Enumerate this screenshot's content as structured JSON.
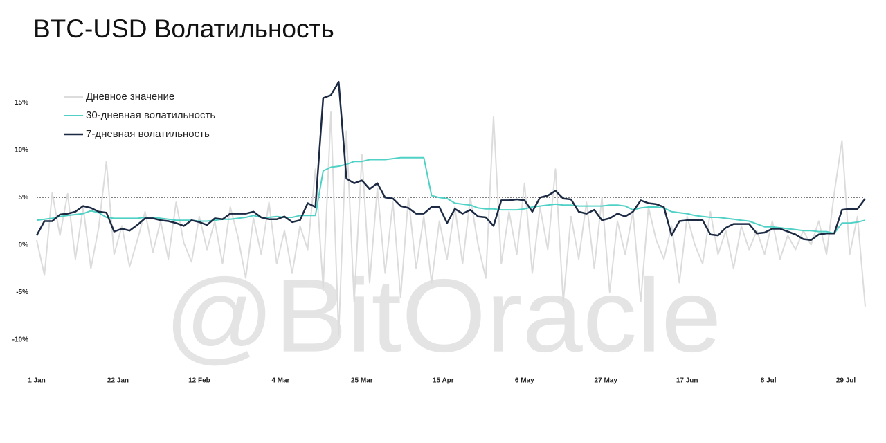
{
  "chart_data": {
    "type": "line",
    "title": "BTC-USD Волатильность",
    "watermark": "@BitOracle",
    "x": [
      0,
      2,
      4,
      6,
      8,
      10,
      12,
      14,
      16,
      18,
      20,
      22,
      24,
      26,
      28,
      30,
      32,
      34,
      36,
      38,
      40,
      42,
      44,
      46,
      48,
      50,
      52,
      54,
      56,
      58,
      60,
      62,
      64,
      66,
      68,
      70,
      72,
      74,
      76,
      78,
      80,
      82,
      84,
      86,
      88,
      90,
      92,
      94,
      96,
      98,
      100,
      102,
      104,
      106,
      108,
      110,
      112,
      114,
      116,
      118,
      120,
      122,
      124,
      126,
      128,
      130,
      132,
      134,
      136,
      138,
      140,
      142,
      144,
      146,
      148,
      150,
      152,
      154,
      156,
      158,
      160,
      162,
      164,
      166,
      168,
      170,
      172,
      174,
      176,
      178,
      180,
      182,
      184,
      186,
      188,
      190,
      192,
      194,
      196,
      198,
      200,
      202,
      204,
      206,
      208,
      210,
      212,
      214
    ],
    "xlim": [
      0,
      214
    ],
    "xticks": [
      {
        "value": 0,
        "label": "1 Jan"
      },
      {
        "value": 21,
        "label": "22 Jan"
      },
      {
        "value": 42,
        "label": "12 Feb"
      },
      {
        "value": 63,
        "label": "4 Mar"
      },
      {
        "value": 84,
        "label": "25 Mar"
      },
      {
        "value": 105,
        "label": "15 Apr"
      },
      {
        "value": 126,
        "label": "6 May"
      },
      {
        "value": 147,
        "label": "27 May"
      },
      {
        "value": 168,
        "label": "17 Jun"
      },
      {
        "value": 189,
        "label": "8 Jul"
      },
      {
        "value": 209,
        "label": "29 Jul"
      }
    ],
    "ylim": [
      -13.6,
      17.8
    ],
    "yticks": [
      {
        "value": -10,
        "label": "-10%"
      },
      {
        "value": -5,
        "label": "-5%"
      },
      {
        "value": 0,
        "label": "0%"
      },
      {
        "value": 5,
        "label": "5%"
      },
      {
        "value": 10,
        "label": "10%"
      },
      {
        "value": 15,
        "label": "15%"
      }
    ],
    "reference_line": 5,
    "legend": "top-left",
    "series": [
      {
        "name": "Дневное значение",
        "color": "#dcdcdc",
        "width": 2,
        "values": [
          0.5,
          -3.2,
          5.5,
          1.0,
          5.4,
          -1.5,
          4.0,
          -2.5,
          1.8,
          8.8,
          -1.0,
          2.0,
          -2.3,
          0.5,
          3.5,
          -0.8,
          2.5,
          -1.5,
          4.5,
          0.2,
          -1.8,
          3.0,
          -0.5,
          2.5,
          -2.0,
          4.0,
          0.8,
          -3.5,
          2.8,
          -1.0,
          4.5,
          -2.0,
          1.5,
          -3.0,
          2.0,
          -0.5,
          8.0,
          -4.5,
          14.0,
          -9.5,
          12.0,
          -6.0,
          9.5,
          -4.0,
          6.0,
          -3.0,
          4.5,
          -5.5,
          5.0,
          -2.5,
          3.0,
          -4.0,
          2.5,
          -1.5,
          4.0,
          -2.0,
          5.0,
          0.0,
          -3.5,
          13.5,
          -2.0,
          3.5,
          -1.0,
          6.5,
          -3.0,
          4.0,
          -0.5,
          8.0,
          -6.0,
          3.0,
          -1.5,
          4.5,
          -2.5,
          5.0,
          -5.0,
          2.5,
          -1.0,
          3.5,
          -6.0,
          4.0,
          0.5,
          -1.5,
          2.0,
          -4.0,
          3.0,
          0.0,
          -2.0,
          3.5,
          -1.0,
          1.5,
          -2.5,
          2.0,
          -0.5,
          1.5,
          -1.0,
          2.5,
          -1.5,
          1.0,
          -0.5,
          1.5,
          0.0,
          2.5,
          -1.0,
          5.5,
          11.0,
          -1.0,
          3.0,
          -6.5
        ]
      },
      {
        "name": "30-дневная волатильность",
        "color": "#4fd1c5",
        "width": 2,
        "values": [
          2.6,
          2.7,
          2.8,
          3.0,
          3.1,
          3.2,
          3.3,
          3.6,
          3.4,
          2.9,
          2.8,
          2.8,
          2.8,
          2.8,
          2.9,
          2.9,
          2.8,
          2.7,
          2.6,
          2.6,
          2.6,
          2.5,
          2.5,
          2.6,
          2.7,
          2.7,
          2.8,
          2.9,
          3.1,
          2.9,
          2.9,
          3.0,
          2.9,
          2.9,
          3.1,
          3.1,
          3.1,
          7.8,
          8.2,
          8.3,
          8.5,
          8.8,
          8.8,
          9.0,
          9.0,
          9.0,
          9.1,
          9.2,
          9.2,
          9.2,
          9.2,
          5.2,
          5.0,
          4.9,
          4.4,
          4.3,
          4.2,
          3.9,
          3.8,
          3.8,
          3.7,
          3.7,
          3.7,
          3.8,
          4.0,
          4.1,
          4.2,
          4.3,
          4.2,
          4.2,
          4.1,
          4.1,
          4.1,
          4.1,
          4.2,
          4.2,
          4.1,
          3.7,
          3.9,
          4.0,
          4.0,
          3.9,
          3.5,
          3.4,
          3.3,
          3.1,
          3.0,
          2.9,
          2.9,
          2.8,
          2.7,
          2.6,
          2.5,
          2.2,
          1.9,
          1.9,
          1.8,
          1.7,
          1.6,
          1.5,
          1.5,
          1.4,
          1.4,
          1.2,
          2.3,
          2.3,
          2.4,
          2.6
        ]
      },
      {
        "name": "7-дневная волатильность",
        "color": "#1c2a44",
        "width": 2.5,
        "values": [
          1.0,
          2.5,
          2.5,
          3.2,
          3.3,
          3.5,
          4.1,
          3.9,
          3.5,
          3.4,
          1.4,
          1.7,
          1.5,
          2.1,
          2.8,
          2.8,
          2.6,
          2.5,
          2.3,
          2.0,
          2.6,
          2.4,
          2.1,
          2.8,
          2.7,
          3.3,
          3.3,
          3.3,
          3.5,
          2.9,
          2.7,
          2.7,
          3.0,
          2.4,
          2.6,
          4.4,
          4.0,
          15.5,
          15.8,
          17.2,
          7.0,
          6.5,
          6.8,
          5.9,
          6.5,
          5.0,
          4.9,
          4.1,
          3.9,
          3.3,
          3.3,
          4.0,
          4.0,
          2.3,
          3.8,
          3.3,
          3.7,
          3.0,
          2.9,
          2.0,
          4.7,
          4.7,
          4.8,
          4.7,
          3.5,
          5.0,
          5.2,
          5.7,
          4.9,
          4.8,
          3.5,
          3.3,
          3.7,
          2.6,
          2.8,
          3.3,
          3.0,
          3.5,
          4.7,
          4.4,
          4.3,
          4.0,
          1.0,
          2.5,
          2.6,
          2.6,
          2.6,
          1.1,
          1.0,
          1.8,
          2.2,
          2.2,
          2.2,
          1.2,
          1.3,
          1.7,
          1.7,
          1.4,
          1.1,
          0.6,
          0.5,
          1.1,
          1.2,
          1.2,
          3.7,
          3.8,
          3.8,
          4.9
        ]
      }
    ]
  }
}
